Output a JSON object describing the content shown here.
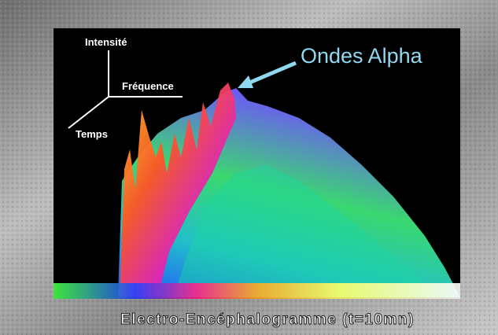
{
  "axes": {
    "intensity": "Intensité",
    "frequency": "Fréquence",
    "time": "Temps"
  },
  "annotation": "Ondes Alpha",
  "caption": "Electro-Encéphalogramme (t=10mn)"
}
